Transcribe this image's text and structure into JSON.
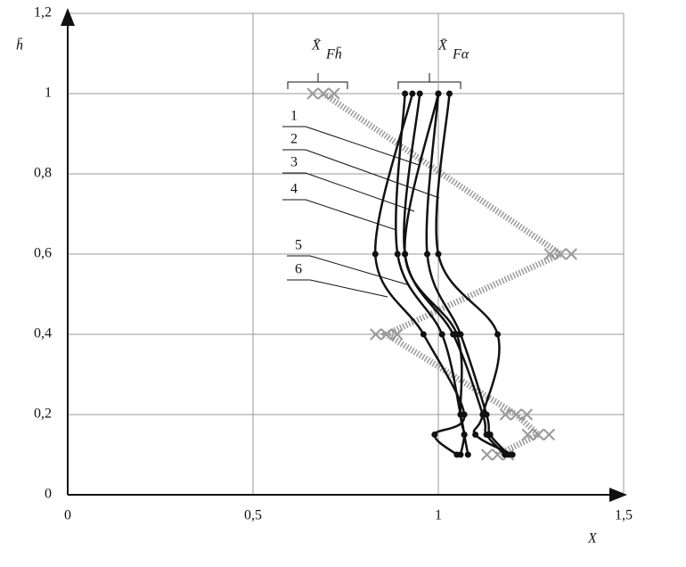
{
  "chart_data": {
    "type": "line",
    "x_label": "X",
    "y_label": "h̄",
    "annotations": [
      {
        "text": "X̄",
        "subscript": "Fh̄"
      },
      {
        "text": "X̄",
        "subscript": "Fα"
      }
    ],
    "y": [
      1,
      0.6,
      0.4,
      0.2,
      0.15,
      0.1
    ],
    "series": [
      {
        "color": "#999999",
        "style": "dotted",
        "values": [
          0.69,
          1.33,
          0.86,
          1.21,
          1.27,
          1.16
        ]
      },
      {
        "name": "1",
        "color": "#111111",
        "values": [
          0.93,
          0.83,
          0.96,
          1.07,
          0.99,
          1.05
        ]
      },
      {
        "name": "2",
        "color": "#111111",
        "values": [
          0.91,
          0.89,
          1.01,
          1.06,
          1.07,
          1.08
        ]
      },
      {
        "name": "3",
        "color": "#111111",
        "values": [
          0.95,
          0.91,
          1.04,
          1.12,
          1.13,
          1.18
        ]
      },
      {
        "name": "4",
        "color": "#111111",
        "values": [
          1.0,
          0.97,
          1.06,
          1.13,
          1.14,
          1.19
        ]
      },
      {
        "name": "5",
        "color": "#111111",
        "values": [
          1.03,
          1.0,
          1.16,
          1.12,
          1.1,
          1.2
        ]
      },
      {
        "name": "6",
        "color": "#111111",
        "values": [
          1.0,
          0.91,
          1.05,
          1.06,
          1.07,
          1.06
        ]
      }
    ],
    "xlim": [
      0,
      1.5
    ],
    "xticks": [
      0,
      {
        "value": 0.5,
        "label": "0,5"
      },
      1,
      {
        "value": 1.5,
        "label": "1,5"
      }
    ],
    "ylim": [
      0,
      1.2
    ],
    "yticks": [
      0,
      {
        "value": 0.2,
        "label": "0,2"
      },
      {
        "value": 0.4,
        "label": "0,4"
      },
      {
        "value": 0.6,
        "label": "0,6"
      },
      {
        "value": 0.8,
        "label": "0,8"
      },
      1,
      {
        "value": 1.2,
        "label": "1,2"
      }
    ],
    "grid": true
  }
}
